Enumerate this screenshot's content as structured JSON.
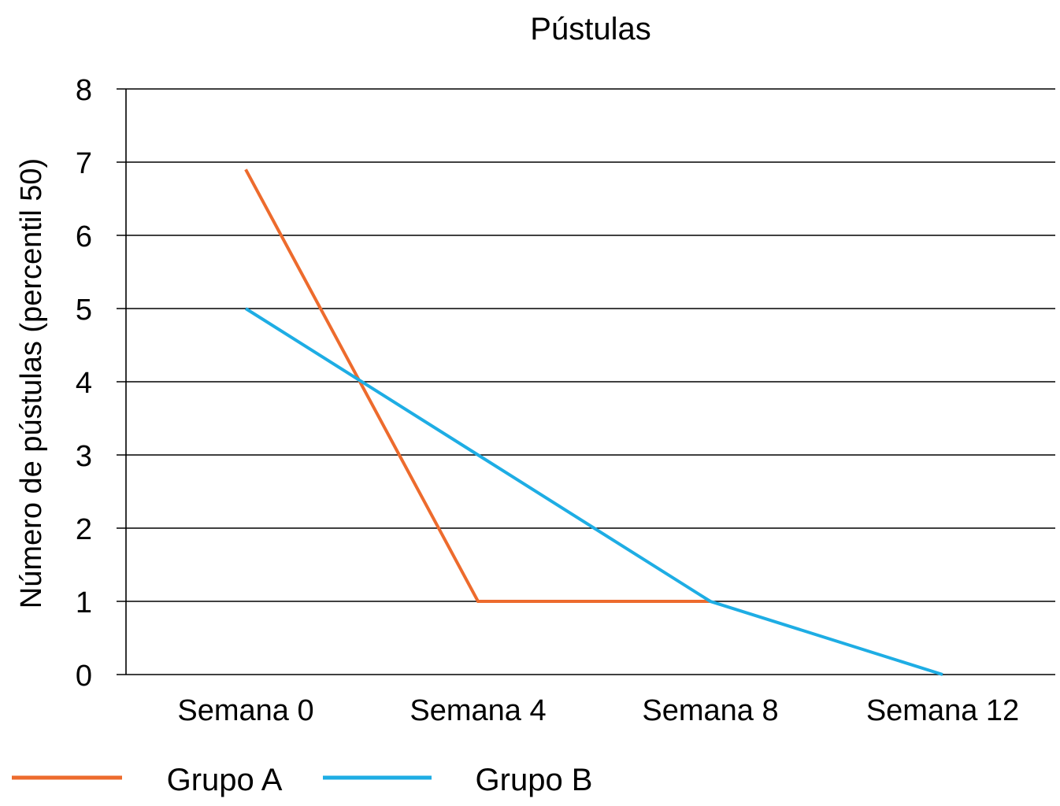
{
  "chart_data": {
    "type": "line",
    "title": "Pústulas",
    "xlabel": "",
    "ylabel": "Número de pústulas (percentil 50)",
    "categories": [
      "Semana 0",
      "Semana 4",
      "Semana 8",
      "Semana 12"
    ],
    "ylim": [
      0,
      8
    ],
    "yticks": [
      "0",
      "1",
      "2",
      "3",
      "4",
      "5",
      "6",
      "7",
      "8"
    ],
    "grid": true,
    "legend_position": "bottom-left",
    "series": [
      {
        "name": "Grupo A",
        "color": "#ED6B2D",
        "values": [
          6.9,
          1,
          1,
          null
        ]
      },
      {
        "name": "Grupo B",
        "color": "#1EADE4",
        "values": [
          5,
          3,
          1,
          0
        ]
      }
    ]
  }
}
